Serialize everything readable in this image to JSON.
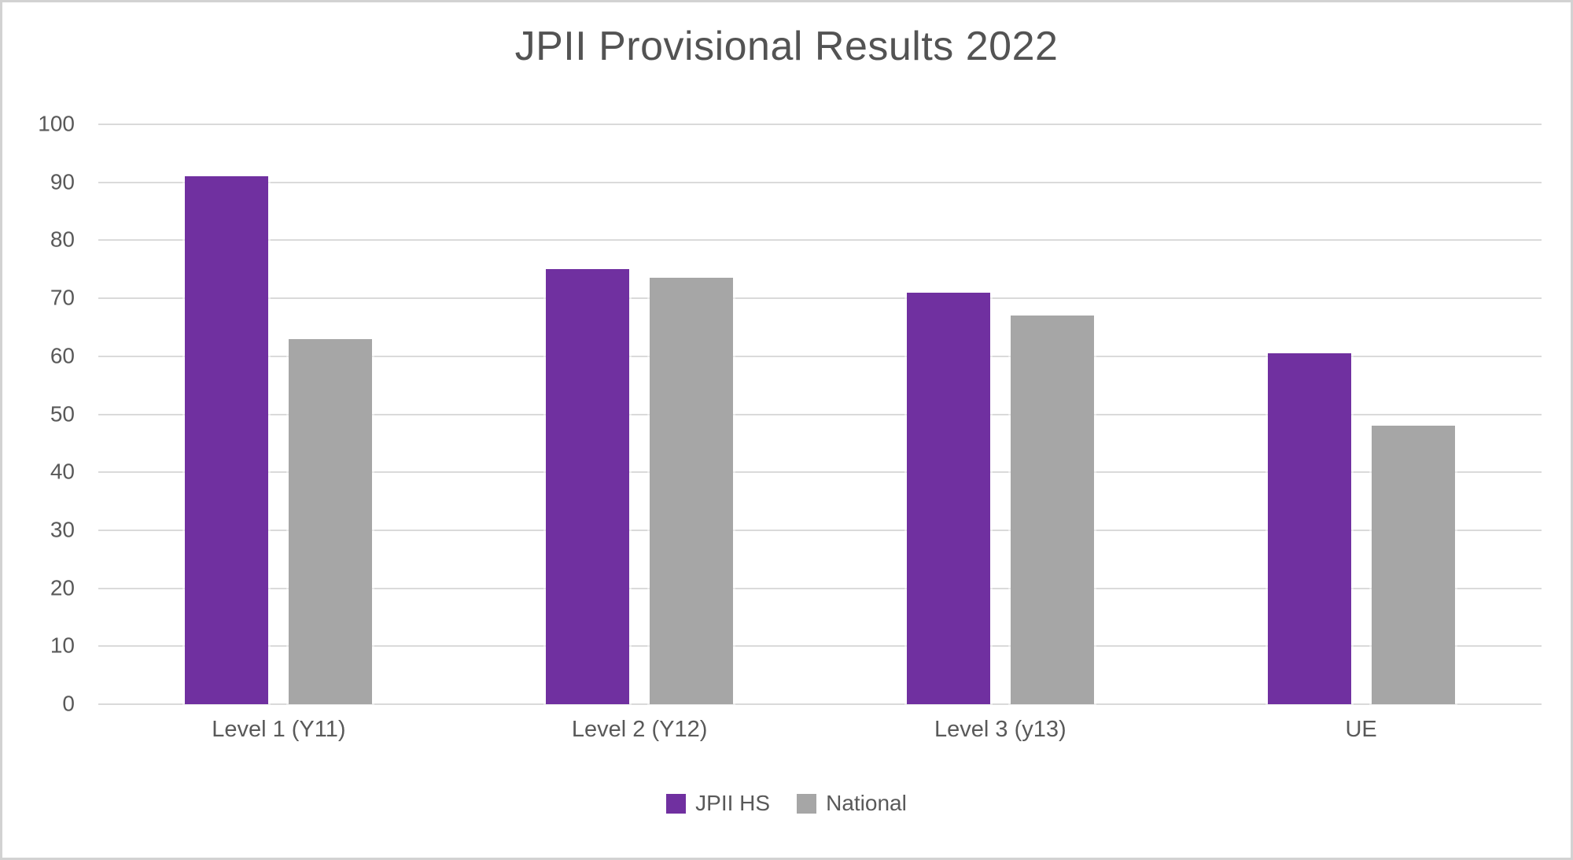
{
  "chart_data": {
    "type": "bar",
    "title": "JPII Provisional Results 2022",
    "categories": [
      "Level 1 (Y11)",
      "Level 2 (Y12)",
      "Level 3 (y13)",
      "UE"
    ],
    "series": [
      {
        "name": "JPII HS",
        "color": "#7030A0",
        "values": [
          91,
          75,
          71,
          60.5
        ]
      },
      {
        "name": "National",
        "color": "#A6A6A6",
        "values": [
          63,
          73.5,
          67,
          48
        ]
      }
    ],
    "ylim": [
      0,
      100
    ],
    "ytick_step": 10,
    "ytick_labels": [
      "0",
      "10",
      "20",
      "30",
      "40",
      "50",
      "60",
      "70",
      "80",
      "90",
      "100"
    ],
    "grid": "horizontal",
    "legend_position": "bottom-center"
  },
  "colors": {
    "jpii_hs": "#7030A0",
    "national": "#A6A6A6",
    "gridline": "#DADADA",
    "axis_text": "#595959",
    "title_text": "#535353",
    "frame_border": "#D2D2D2",
    "background": "#FFFFFF"
  }
}
